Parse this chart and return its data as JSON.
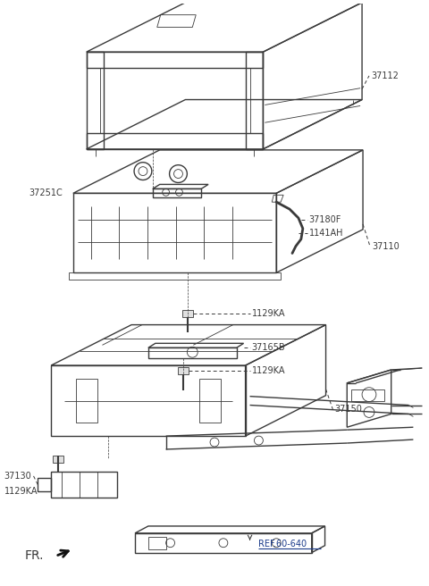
{
  "bg_color": "#ffffff",
  "lc": "#3a3a3a",
  "ref_color": "#1a3a8a",
  "lw": 1.0,
  "lw_t": 0.6,
  "fs": 7.0,
  "components": {
    "box_label": "37112",
    "plate_label": "37251C",
    "cable_label": "37180F",
    "connector_label": "1141AH",
    "battery_label": "37110",
    "bolt1_label": "1129KA",
    "bracket_label": "37165B",
    "bolt2_label": "1129KA",
    "tray_label": "37150",
    "clamp_label": "37130",
    "bolt3_label": "1129KA",
    "ref_label": "REF.60-640"
  }
}
